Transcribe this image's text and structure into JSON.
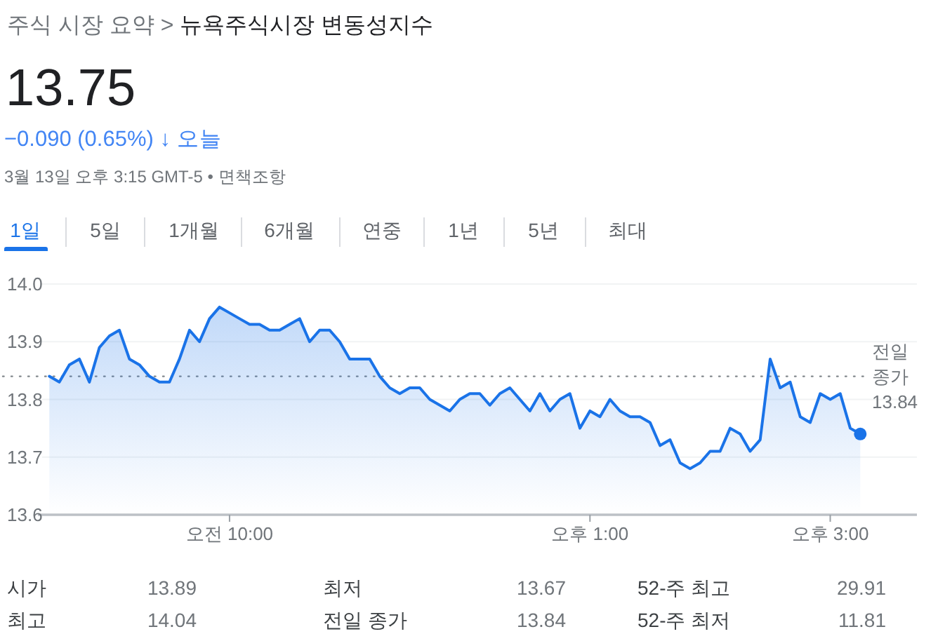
{
  "chart_data": {
    "type": "area",
    "title": "주식 시장 요약 > 뉴욕주식시장 변동성지수",
    "annotations": [
      "13.75",
      "−0.090 (0.65%) ↓ 오늘",
      "3월 13일 오후 3:15 GMT-5 • 면책조항",
      "1일",
      "5일",
      "1개월",
      "6개월",
      "연중",
      "1년",
      "5년",
      "최대",
      "시가",
      "13.89",
      "최저",
      "13.67",
      "52-주 최고",
      "29.91",
      "최고",
      "14.04",
      "전일 종가",
      "13.84",
      "52-주 최저",
      "11.81"
    ],
    "categories": [
      null,
      null,
      null,
      null,
      null,
      null,
      null,
      null,
      null,
      null,
      null,
      null,
      null,
      null,
      null,
      null,
      null,
      null,
      "오전 10:00",
      null,
      null,
      null,
      null,
      null,
      null,
      null,
      null,
      null,
      null,
      null,
      null,
      null,
      null,
      null,
      null,
      null,
      null,
      null,
      null,
      null,
      null,
      null,
      null,
      null,
      null,
      null,
      null,
      null,
      null,
      null,
      null,
      null,
      null,
      null,
      "오후 1:00",
      null,
      null,
      null,
      null,
      null,
      null,
      null,
      null,
      null,
      null,
      null,
      null,
      null,
      null,
      null,
      null,
      null,
      null,
      null,
      null,
      null,
      null,
      null,
      "오후 3:00",
      null,
      null,
      null
    ],
    "ylim": [
      13.6,
      14.0
    ],
    "yticks": [
      13.6,
      13.7,
      13.8,
      13.9,
      {
        "value": 14,
        "label": "14.0"
      }
    ],
    "grid": "y",
    "ref_lines": [
      {
        "axis": "y",
        "value": 13.84,
        "label": "전일 종가 13.84",
        "line_style": "dotted",
        "color": "#80868b"
      }
    ],
    "series": [
      {
        "color": "#1a73e8",
        "values": [
          13.84,
          13.83,
          13.86,
          13.87,
          13.83,
          13.89,
          13.91,
          13.92,
          13.87,
          13.86,
          13.84,
          13.83,
          13.83,
          13.87,
          13.92,
          13.9,
          13.94,
          13.96,
          13.95,
          13.94,
          13.93,
          13.93,
          13.92,
          13.92,
          13.93,
          13.94,
          13.9,
          13.92,
          13.92,
          13.9,
          13.87,
          13.87,
          13.87,
          13.84,
          13.82,
          13.81,
          13.82,
          13.82,
          13.8,
          13.79,
          13.78,
          13.8,
          13.81,
          13.81,
          13.79,
          13.81,
          13.82,
          13.8,
          13.78,
          13.81,
          13.78,
          13.8,
          13.81,
          13.75,
          13.78,
          13.77,
          13.8,
          13.78,
          13.77,
          13.77,
          13.76,
          13.72,
          13.73,
          13.69,
          13.68,
          13.69,
          13.71,
          13.71,
          13.75,
          13.74,
          13.71,
          13.73,
          13.87,
          13.82,
          13.83,
          13.77,
          13.76,
          13.81,
          13.8,
          13.81,
          13.75,
          13.74
        ]
      },
      {
        "type": "scatter",
        "color": "#1a73e8",
        "values": [
          null,
          null,
          null,
          null,
          null,
          null,
          null,
          null,
          null,
          null,
          null,
          null,
          null,
          null,
          null,
          null,
          null,
          null,
          null,
          null,
          null,
          null,
          null,
          null,
          null,
          null,
          null,
          null,
          null,
          null,
          null,
          null,
          null,
          null,
          null,
          null,
          null,
          null,
          null,
          null,
          null,
          null,
          null,
          null,
          null,
          null,
          null,
          null,
          null,
          null,
          null,
          null,
          null,
          null,
          null,
          null,
          null,
          null,
          null,
          null,
          null,
          null,
          null,
          null,
          null,
          null,
          null,
          null,
          null,
          null,
          null,
          null,
          null,
          null,
          null,
          null,
          null,
          null,
          null,
          null,
          null,
          13.74
        ]
      }
    ]
  }
}
